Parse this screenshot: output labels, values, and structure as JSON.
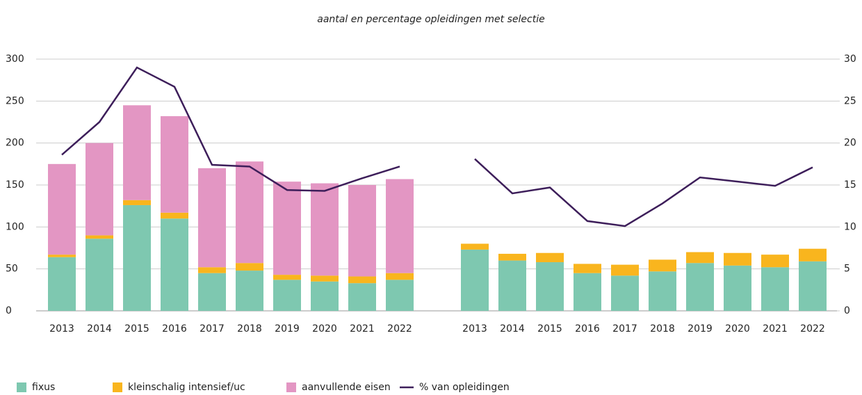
{
  "chart_data": {
    "type": "bar",
    "stacked": true,
    "title": "aantal en percentage opleidingen met selectie",
    "categories": [
      "2013",
      "2014",
      "2015",
      "2016",
      "2017",
      "2018",
      "2019",
      "2020",
      "2021",
      "2022",
      null,
      "2013",
      "2014",
      "2015",
      "2016",
      "2017",
      "2018",
      "2019",
      "2020",
      "2021",
      "2022"
    ],
    "series": [
      {
        "name": "fixus",
        "color": "#7ec8b0",
        "values": [
          64,
          86,
          126,
          110,
          45,
          48,
          37,
          35,
          33,
          37,
          null,
          73,
          60,
          58,
          45,
          42,
          47,
          57,
          54,
          52,
          59
        ]
      },
      {
        "name": "kleinschalig intensief/uc",
        "color": "#f9b51e",
        "values": [
          3,
          4,
          6,
          7,
          7,
          9,
          6,
          7,
          8,
          8,
          null,
          7,
          8,
          11,
          11,
          13,
          14,
          13,
          15,
          15,
          15
        ]
      },
      {
        "name": "aanvullende eisen",
        "color": "#e396c3",
        "values": [
          108,
          110,
          113,
          115,
          118,
          121,
          111,
          110,
          109,
          112,
          null,
          0,
          0,
          0,
          0,
          0,
          0,
          0,
          0,
          0,
          0
        ]
      },
      {
        "name": "% van opleidingen",
        "color": "#3d1e5a",
        "type": "line",
        "axis": "y2",
        "values": [
          18.6,
          22.5,
          29,
          26.7,
          17.4,
          17.2,
          14.4,
          14.3,
          15.8,
          17.2,
          null,
          18.1,
          14,
          14.7,
          10.7,
          10.1,
          12.8,
          15.9,
          15.4,
          14.9,
          17.1
        ]
      }
    ],
    "ylim": [
      0,
      300
    ],
    "yticks": [
      0,
      50,
      100,
      150,
      200,
      250,
      300
    ],
    "y2lim": [
      0,
      30
    ],
    "y2ticks": [
      0,
      5,
      10,
      15,
      20,
      25,
      30
    ],
    "grid": true,
    "legend": "bottom"
  }
}
